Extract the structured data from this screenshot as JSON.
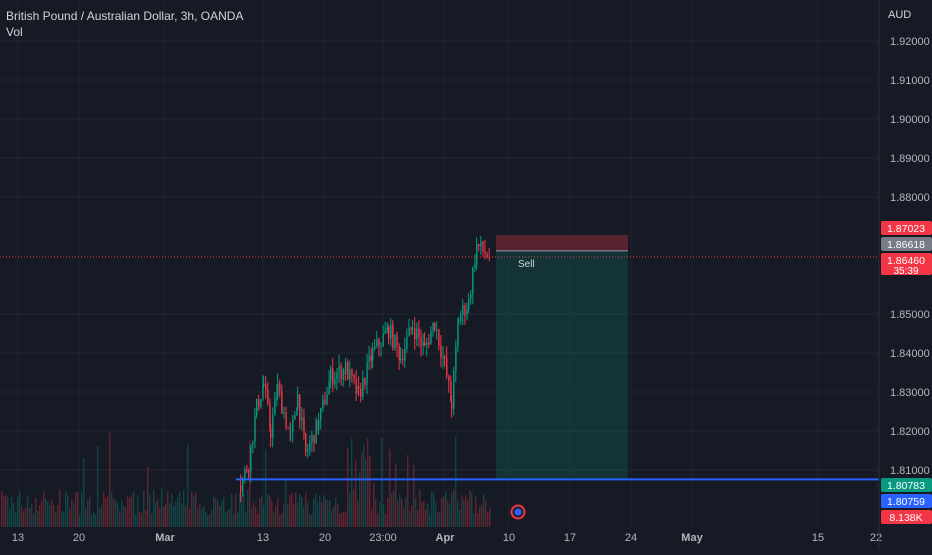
{
  "header": {
    "title": "British Pound / Australian Dollar, 3h, OANDA",
    "volume_label": "Vol"
  },
  "axis": {
    "currency": "AUD"
  },
  "position": {
    "label": "Sell"
  },
  "price_tags": [
    {
      "text": "1.87023",
      "bg": "#f23645",
      "fg": "#ffffff"
    },
    {
      "text": "1.86618",
      "bg": "#787b86",
      "fg": "#ffffff"
    },
    {
      "text": "1.86460",
      "sub": "35:39",
      "bg": "#f23645",
      "fg": "#ffffff"
    },
    {
      "text": "1.80783",
      "bg": "#089981",
      "fg": "#ffffff"
    },
    {
      "text": "1.80759",
      "bg": "#2962ff",
      "fg": "#ffffff"
    },
    {
      "text": "8.138K",
      "bg": "#f23645",
      "fg": "#ffffff"
    }
  ],
  "colors": {
    "up": "#089981",
    "down": "#f23645",
    "horizontal_line": "#2962ff",
    "background": "#161a25"
  },
  "chart_data": {
    "type": "candlestick",
    "title": "British Pound / Australian Dollar, 3h, OANDA",
    "y_ticks": [
      1.92,
      1.91,
      1.9,
      1.89,
      1.88,
      1.85,
      1.84,
      1.83,
      1.82,
      1.81
    ],
    "y_tick_labels": [
      "1.92000",
      "1.91000",
      "1.90000",
      "1.89000",
      "1.88000",
      "1.85000",
      "1.84000",
      "1.83000",
      "1.82000",
      "1.81000"
    ],
    "ylim": [
      1.7995,
      1.9285
    ],
    "x_tick_labels": [
      "13",
      "20",
      "Mar",
      "13",
      "20",
      "23:00",
      "Apr",
      "10",
      "17",
      "24",
      "May",
      "15",
      "22"
    ],
    "current_price": 1.8646,
    "horizontal_line": 1.80759,
    "short_position": {
      "stop": 1.87023,
      "entry": 1.86618,
      "target": 1.80783
    },
    "trend_waypoints": [
      {
        "date": "Mar 8",
        "price": 1.806
      },
      {
        "date": "Mar 10",
        "price": 1.812
      },
      {
        "date": "Mar 12",
        "price": 1.826
      },
      {
        "date": "Mar 13",
        "price": 1.832
      },
      {
        "date": "Mar 14",
        "price": 1.82
      },
      {
        "date": "Mar 15",
        "price": 1.831
      },
      {
        "date": "Mar 17",
        "price": 1.818
      },
      {
        "date": "Mar 18",
        "price": 1.829
      },
      {
        "date": "Mar 19",
        "price": 1.814
      },
      {
        "date": "Mar 21",
        "price": 1.822
      },
      {
        "date": "Mar 22",
        "price": 1.834
      },
      {
        "date": "Mar 24",
        "price": 1.836
      },
      {
        "date": "Mar 25",
        "price": 1.829
      },
      {
        "date": "Mar 26",
        "price": 1.84
      },
      {
        "date": "Mar 27",
        "price": 1.846
      },
      {
        "date": "Mar 28",
        "price": 1.839
      },
      {
        "date": "Mar 30",
        "price": 1.847
      },
      {
        "date": "Mar 31",
        "price": 1.841
      },
      {
        "date": "Apr 1",
        "price": 1.848
      },
      {
        "date": "Apr 2",
        "price": 1.837
      },
      {
        "date": "Apr 3",
        "price": 1.827
      },
      {
        "date": "Apr 4",
        "price": 1.849
      },
      {
        "date": "Apr 5",
        "price": 1.853
      },
      {
        "date": "Apr 6",
        "price": 1.8675
      },
      {
        "date": "Apr 7",
        "price": 1.8646
      }
    ]
  }
}
